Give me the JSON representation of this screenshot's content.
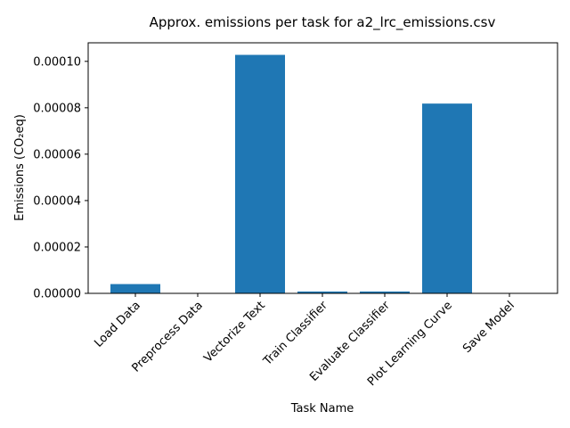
{
  "chart_data": {
    "type": "bar",
    "title": "Approx. emissions per task for a2_lrc_emissions.csv",
    "xlabel": "Task Name",
    "ylabel": "Emissions (CO₂eq)",
    "categories": [
      "Load Data",
      "Preprocess Data",
      "Vectorize Text",
      "Train Classifier",
      "Evaluate Classifier",
      "Plot Learning Curve",
      "Save Model"
    ],
    "values": [
      4e-06,
      0.0,
      0.0001028,
      8e-07,
      8e-07,
      8.18e-05,
      0.0
    ],
    "ylim": [
      0,
      0.000108
    ],
    "yticks": [
      0,
      2e-05,
      4e-05,
      6e-05,
      8e-05,
      0.0001
    ],
    "ytick_labels": [
      "0.00000",
      "0.00002",
      "0.00004",
      "0.00006",
      "0.00008",
      "0.00010"
    ],
    "bar_color": "#1f77b4",
    "grid": false,
    "legend": "none"
  }
}
